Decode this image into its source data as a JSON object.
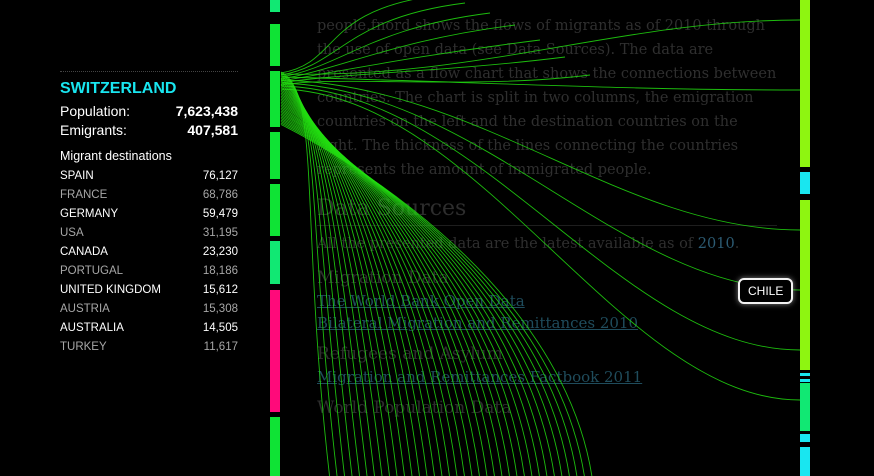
{
  "article": {
    "intro_lines": [
      "people.fnord shows the flows of migrants as of 2010 through",
      "the use of open data (see Data Sources). The data are",
      "presented as a flow chart that shows the connections between",
      "countries. The chart is split in two columns, the emigration",
      "countries on the left and the destination countries on the",
      "right. The thickness of the lines connecting the countries",
      "represents the amount of immigrated people."
    ],
    "sources_heading": "Data Sources",
    "available_text": "All the presented data are the latest available as of",
    "available_year": "2010",
    "section1_title": "Migration Data",
    "section1_link1": "The World Bank Open Data",
    "section1_link2": "Bilateral Migration and Remittances 2010",
    "section2_title": "Refugees and Asylum",
    "section2_link1": "Migration and Remittances Factbook 2011",
    "section3_title": "World Population Data"
  },
  "panel": {
    "country": "SWITZERLAND",
    "population_label": "Population:",
    "population_value": "7,623,438",
    "emigrants_label": "Emigrants:",
    "emigrants_value": "407,581",
    "destinations_title": "Migrant destinations",
    "destinations": [
      {
        "name": "SPAIN",
        "value": "76,127"
      },
      {
        "name": "FRANCE",
        "value": "68,786"
      },
      {
        "name": "GERMANY",
        "value": "59,479"
      },
      {
        "name": "USA",
        "value": "31,195"
      },
      {
        "name": "CANADA",
        "value": "23,230"
      },
      {
        "name": "PORTUGAL",
        "value": "18,186"
      },
      {
        "name": "UNITED KINGDOM",
        "value": "15,612"
      },
      {
        "name": "AUSTRIA",
        "value": "15,308"
      },
      {
        "name": "AUSTRALIA",
        "value": "14,505"
      },
      {
        "name": "TURKEY",
        "value": "11,617"
      }
    ]
  },
  "tooltip": {
    "label": "CHILE"
  },
  "colors": {
    "accent_cyan": "#19e6f0",
    "flow_green": "#22dd11",
    "bar_green": "#0fe335",
    "bar_mint": "#11e873",
    "bar_magenta": "#ff0a7a",
    "bar_lime": "#8ef511"
  }
}
